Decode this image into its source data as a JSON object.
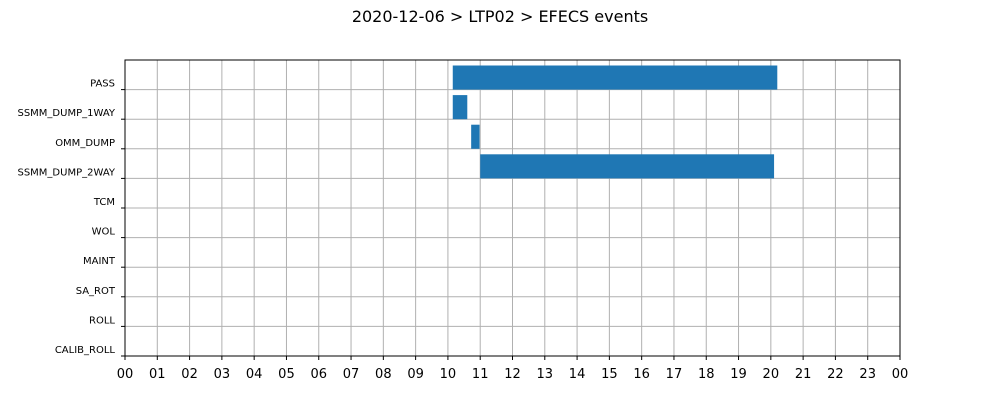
{
  "chart_data": {
    "type": "bar",
    "orientation": "horizontal-timeline",
    "title": "2020-12-06 > LTP02 > EFECS events",
    "xlabel": "",
    "ylabel": "",
    "categories": [
      "PASS",
      "SSMM_DUMP_1WAY",
      "OMM_DUMP",
      "SSMM_DUMP_2WAY",
      "TCM",
      "WOL",
      "MAINT",
      "SA_ROT",
      "ROLL",
      "CALIB_ROLL"
    ],
    "x_ticks": [
      "00",
      "01",
      "02",
      "03",
      "04",
      "05",
      "06",
      "07",
      "08",
      "09",
      "10",
      "11",
      "12",
      "13",
      "14",
      "15",
      "16",
      "17",
      "18",
      "19",
      "20",
      "21",
      "22",
      "23",
      "00"
    ],
    "xlim_hours": [
      0,
      24
    ],
    "grid": true,
    "legend": "none",
    "color": "#1f77b4",
    "events": [
      {
        "category": "PASS",
        "start": 10.15,
        "end": 20.2
      },
      {
        "category": "SSMM_DUMP_1WAY",
        "start": 10.15,
        "end": 10.6
      },
      {
        "category": "OMM_DUMP",
        "start": 10.72,
        "end": 10.98
      },
      {
        "category": "SSMM_DUMP_2WAY",
        "start": 11.0,
        "end": 20.1
      }
    ]
  }
}
